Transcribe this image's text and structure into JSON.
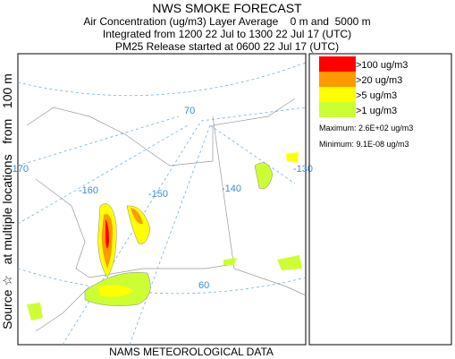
{
  "header": {
    "title": "NWS SMOKE FORECAST",
    "lines": [
      "Air Concentration (ug/m3) Layer Average    0 m and  5000 m",
      "Integrated from 1200 22 Jul to 1300 22 Jul 17 (UTC)",
      "PM25 Release started at 0600 22 Jul 17 (UTC)"
    ]
  },
  "side_label": "Source ☆   at multiple locations   from   100 m",
  "footer": "NAMS METEOROLOGICAL DATA",
  "map_labels": [
    "70",
    "-170",
    "-160",
    "-150",
    "-140",
    "-130",
    "60"
  ],
  "legend": {
    "items": [
      {
        "label": ">100 ug/m3",
        "color": "#ff0000"
      },
      {
        "label": ">20 ug/m3",
        "color": "#ff9900"
      },
      {
        "label": ">5 ug/m3",
        "color": "#ffff00"
      },
      {
        "label": ">1 ug/m3",
        "color": "#ccff33"
      }
    ],
    "maximum": "Maximum: 2.6E+02 ug/m3",
    "minimum": "Minimum: 9.1E-08 ug/m3"
  }
}
